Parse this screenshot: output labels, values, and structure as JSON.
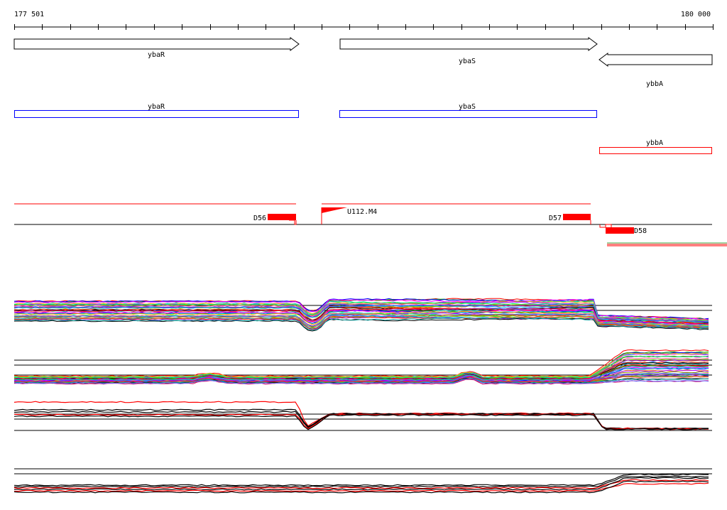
{
  "ruler": {
    "start_label": "177 501",
    "end_label": "180 000"
  },
  "colors": {
    "gene_outline_blue": "#0000ff",
    "gene_outline_red": "#ff0000",
    "feature_red": "#ff0000",
    "line_black": "#000000"
  },
  "genes": {
    "yba_r": "ybaR",
    "yba_s": "ybaS",
    "ybb_a": "ybbA"
  },
  "features": {
    "d56": "D56",
    "d57": "D57",
    "d58": "D58",
    "u112": "U112.M4"
  }
}
